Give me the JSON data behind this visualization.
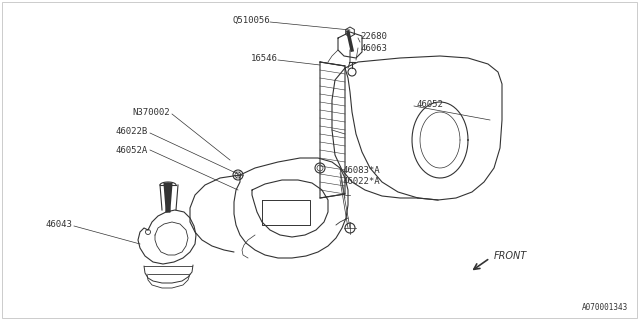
{
  "bg_color": "#ffffff",
  "line_color": "#333333",
  "border_color": "#aaaaaa",
  "labels": {
    "Q510056": [
      0.423,
      0.068,
      "right"
    ],
    "22680": [
      0.558,
      0.118,
      "left"
    ],
    "46063": [
      0.558,
      0.15,
      "left"
    ],
    "16546": [
      0.435,
      0.188,
      "right"
    ],
    "46052": [
      0.648,
      0.33,
      "left"
    ],
    "N370002": [
      0.268,
      0.355,
      "right"
    ],
    "46022B": [
      0.235,
      0.415,
      "right"
    ],
    "46052A": [
      0.235,
      0.47,
      "right"
    ],
    "46083*A": [
      0.53,
      0.54,
      "left"
    ],
    "46022*A": [
      0.53,
      0.562,
      "left"
    ],
    "46043": [
      0.115,
      0.705,
      "right"
    ],
    "FRONT": [
      0.5,
      0.69,
      "left"
    ],
    "A070001343": [
      0.98,
      0.96,
      "right"
    ]
  },
  "font_size": 6.5,
  "small_font_size": 5.5
}
